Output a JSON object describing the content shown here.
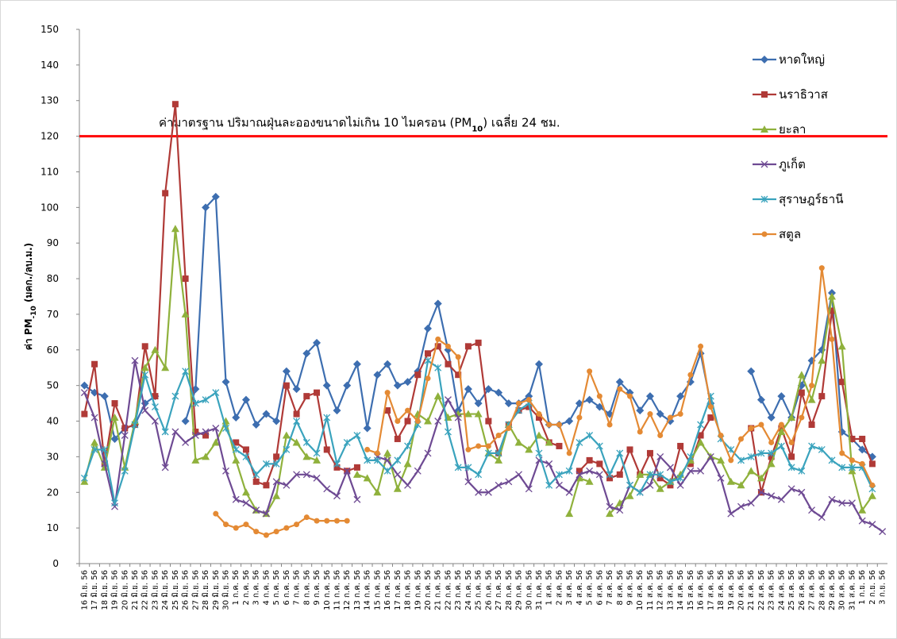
{
  "chart_data": {
    "type": "line",
    "y_label_parts": [
      "ค่า PM",
      "-10",
      " (มคก./ลบ.ม.)"
    ],
    "categories": [
      "16 มิ.ย. 56",
      "17 มิ.ย. 56",
      "18 มิ.ย. 56",
      "19 มิ.ย. 56",
      "20 มิ.ย. 56",
      "21 มิ.ย. 56",
      "22 มิ.ย. 56",
      "23 มิ.ย. 56",
      "24 มิ.ย. 56",
      "25 มิ.ย. 56",
      "26 มิ.ย. 56",
      "27 มิ.ย. 56",
      "28 มิ.ย. 56",
      "29 มิ.ย. 56",
      "30 มิ.ย. 56",
      "1 ก.ค. 56",
      "2 ก.ค. 56",
      "3 ก.ค. 56",
      "4 ก.ค. 56",
      "5 ก.ค. 56",
      "6 ก.ค. 56",
      "7 ก.ค. 56",
      "8 ก.ค. 56",
      "9 ก.ค. 56",
      "10 ก.ค. 56",
      "11 ก.ค. 56",
      "12 ก.ค. 56",
      "13 ก.ค. 56",
      "14 ก.ค. 56",
      "15 ก.ค. 56",
      "16 ก.ค. 56",
      "17 ก.ค. 56",
      "18 ก.ค. 56",
      "19 ก.ค. 56",
      "20 ก.ค. 56",
      "21 ก.ค. 56",
      "22 ก.ค. 56",
      "23 ก.ค. 56",
      "24 ก.ค. 56",
      "25 ก.ค. 56",
      "26 ก.ค. 56",
      "27 ก.ค. 56",
      "28 ก.ค. 56",
      "29 ก.ค. 56",
      "30 ก.ค. 56",
      "31 ก.ค. 56",
      "1 ส.ค. 56",
      "2 ส.ค. 56",
      "3 ส.ค. 56",
      "4 ส.ค. 56",
      "5 ส.ค. 56",
      "6 ส.ค. 56",
      "7 ส.ค. 56",
      "8 ส.ค. 56",
      "9 ส.ค. 56",
      "10 ส.ค. 56",
      "11 ส.ค. 56",
      "12 ส.ค. 56",
      "13 ส.ค. 56",
      "14 ส.ค. 56",
      "15 ส.ค. 56",
      "16 ส.ค. 56",
      "17 ส.ค. 56",
      "18 ส.ค. 56",
      "19 ส.ค. 56",
      "20 ส.ค. 56",
      "21 ส.ค. 56",
      "22 ส.ค. 56",
      "23 ส.ค. 56",
      "24 ส.ค. 56",
      "25 ส.ค. 56",
      "26 ส.ค. 56",
      "27 ส.ค. 56",
      "28 ส.ค. 56",
      "29 ส.ค. 56",
      "30 ส.ค. 56",
      "31 ส.ค. 56",
      "1 ก.ย. 56",
      "2 ก.ย. 56",
      "3 ก.ย. 56"
    ],
    "series": [
      {
        "name": "หาดใหญ่",
        "color": "#3d6eb0",
        "marker": "diamond",
        "values": [
          50,
          48,
          47,
          35,
          38,
          39,
          45,
          47,
          null,
          null,
          40,
          49,
          100,
          103,
          51,
          41,
          46,
          39,
          42,
          40,
          54,
          49,
          59,
          62,
          50,
          43,
          50,
          56,
          38,
          53,
          56,
          50,
          51,
          54,
          66,
          73,
          60,
          43,
          49,
          45,
          49,
          48,
          45,
          45,
          47,
          56,
          39,
          39,
          40,
          45,
          46,
          44,
          42,
          51,
          48,
          43,
          47,
          42,
          40,
          47,
          51,
          59,
          45,
          null,
          null,
          null,
          54,
          46,
          41,
          47,
          41,
          50,
          57,
          60,
          76,
          37,
          35,
          32,
          30,
          null
        ]
      },
      {
        "name": "นราธิวาส",
        "color": "#b03a37",
        "marker": "square",
        "values": [
          42,
          56,
          28,
          45,
          38,
          39,
          61,
          47,
          104,
          129,
          80,
          37,
          36,
          null,
          null,
          34,
          32,
          23,
          22,
          30,
          50,
          42,
          47,
          48,
          32,
          27,
          26,
          27,
          null,
          null,
          43,
          35,
          40,
          53,
          59,
          61,
          56,
          53,
          61,
          62,
          40,
          31,
          39,
          43,
          44,
          41,
          34,
          33,
          null,
          26,
          29,
          28,
          24,
          25,
          32,
          25,
          31,
          24,
          22,
          33,
          28,
          36,
          41,
          null,
          null,
          null,
          38,
          20,
          30,
          38,
          30,
          48,
          39,
          47,
          71,
          51,
          35,
          35,
          28,
          null
        ]
      },
      {
        "name": "ยะลา",
        "color": "#8fb13c",
        "marker": "triangle",
        "values": [
          23,
          34,
          27,
          41,
          27,
          40,
          55,
          60,
          55,
          94,
          70,
          29,
          30,
          34,
          40,
          29,
          20,
          15,
          14,
          19,
          36,
          34,
          30,
          29,
          null,
          null,
          null,
          25,
          24,
          20,
          31,
          21,
          28,
          42,
          40,
          47,
          41,
          42,
          42,
          42,
          31,
          29,
          39,
          34,
          32,
          36,
          34,
          null,
          14,
          24,
          23,
          null,
          14,
          17,
          19,
          25,
          25,
          21,
          23,
          25,
          29,
          34,
          30,
          29,
          23,
          22,
          26,
          24,
          28,
          37,
          41,
          53,
          46,
          57,
          75,
          61,
          26,
          15,
          19,
          null
        ]
      },
      {
        "name": "ภูเก็ต",
        "color": "#6e4a93",
        "marker": "x",
        "values": [
          48,
          41,
          28,
          16,
          36,
          57,
          43,
          40,
          27,
          37,
          34,
          36,
          37,
          38,
          26,
          18,
          17,
          15,
          14,
          23,
          22,
          25,
          25,
          24,
          21,
          19,
          26,
          18,
          null,
          30,
          29,
          25,
          22,
          26,
          31,
          40,
          46,
          41,
          23,
          20,
          20,
          22,
          23,
          25,
          21,
          29,
          28,
          22,
          20,
          25,
          26,
          25,
          16,
          15,
          22,
          20,
          22,
          30,
          27,
          22,
          26,
          26,
          30,
          24,
          14,
          16,
          17,
          20,
          19,
          18,
          21,
          20,
          15,
          13,
          18,
          17,
          17,
          12,
          11,
          9
        ]
      },
      {
        "name": "สุราษฎร์ธานี",
        "color": "#3aa3bd",
        "marker": "star",
        "values": [
          24,
          32,
          32,
          17,
          26,
          39,
          53,
          44,
          37,
          47,
          54,
          45,
          46,
          48,
          38,
          32,
          30,
          25,
          28,
          28,
          32,
          40,
          34,
          31,
          41,
          28,
          34,
          36,
          29,
          29,
          26,
          29,
          33,
          39,
          57,
          55,
          37,
          27,
          27,
          25,
          31,
          31,
          39,
          43,
          45,
          31,
          22,
          25,
          26,
          34,
          36,
          33,
          25,
          31,
          22,
          20,
          25,
          25,
          23,
          24,
          30,
          39,
          47,
          35,
          32,
          29,
          30,
          31,
          31,
          33,
          27,
          26,
          33,
          32,
          29,
          27,
          27,
          27,
          21,
          null
        ]
      },
      {
        "name": "สตูล",
        "color": "#e48a34",
        "marker": "circle",
        "values": [
          null,
          null,
          null,
          null,
          null,
          null,
          null,
          null,
          null,
          null,
          null,
          null,
          null,
          14,
          11,
          10,
          11,
          9,
          8,
          9,
          10,
          11,
          13,
          12,
          12,
          12,
          12,
          null,
          32,
          31,
          48,
          40,
          43,
          40,
          52,
          63,
          61,
          58,
          32,
          33,
          33,
          36,
          38,
          45,
          46,
          42,
          39,
          39,
          31,
          41,
          54,
          47,
          39,
          49,
          47,
          37,
          42,
          36,
          41,
          42,
          53,
          61,
          44,
          36,
          29,
          35,
          38,
          39,
          34,
          39,
          34,
          41,
          50,
          83,
          63,
          31,
          29,
          28,
          22,
          null
        ]
      }
    ],
    "reference_line": {
      "value": 120,
      "color": "#ff0000",
      "label_parts": [
        "ค่ามาตรฐาน ปริมาณฝุ่นละอองขนาดไม่เกิน 10 ไมครอน (PM",
        "10",
        ") เฉลี่ย 24 ชม."
      ]
    },
    "ylim": [
      0,
      150
    ],
    "yticks": [
      0,
      10,
      20,
      30,
      40,
      50,
      60,
      70,
      80,
      90,
      100,
      110,
      120,
      130,
      140,
      150
    ],
    "grid": false
  }
}
